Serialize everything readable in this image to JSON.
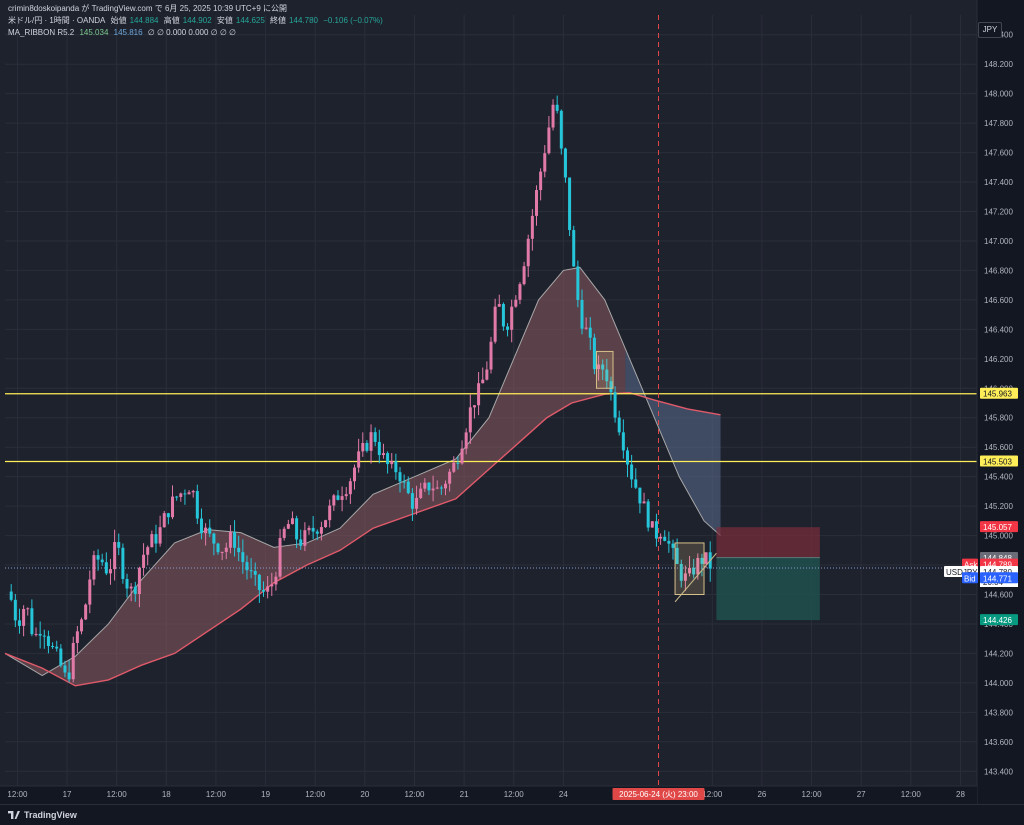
{
  "header": {
    "publish_line": "crimin8doskoipanda が TradingView.com で 6月 25, 2025 10:39 UTC+9 に公開",
    "symbol": "米ドル/円 · 1時間 · OANDA",
    "open_label": "始値",
    "open_value": "144.884",
    "high_label": "高値",
    "high_value": "144.902",
    "low_label": "安値",
    "low_value": "144.625",
    "close_label": "終値",
    "close_value": "144.780",
    "change": "−0.106 (−0.07%)",
    "indicator_name": "MA_RIBBON R5.2",
    "ma_value_1": "145.034",
    "ma_value_2": "145.816",
    "indicator_rest": "∅ ∅ 0.000 0.000 ∅ ∅ ∅"
  },
  "currency_badge": "JPY",
  "footer": {
    "brand": "TradingView"
  },
  "colors": {
    "background": "#1e222d",
    "up": "#e27aa8",
    "down": "#26c6da",
    "grid": "#2a2e39",
    "hline": "#ffee58",
    "ribbon_fill": "#8d5a60",
    "ribbon_fill_after": "#5b6b8f",
    "ma_fast": "#a7a7a7",
    "ma_slow": "#e05a6a",
    "stop_zone": "#7a2d3a",
    "target_zone": "#1f5250",
    "crosshair": "#e04848"
  },
  "chart_data": {
    "type": "candlestick",
    "symbol": "USDJPY",
    "timeframe": "1時間",
    "y_axis": {
      "min": 143.3,
      "max": 148.5,
      "ticks": [
        "148.400",
        "148.200",
        "148.000",
        "147.800",
        "147.600",
        "147.400",
        "147.200",
        "147.000",
        "146.800",
        "146.600",
        "146.400",
        "146.200",
        "146.000",
        "145.800",
        "145.600",
        "145.400",
        "145.200",
        "145.000",
        "144.800",
        "144.600",
        "144.400",
        "144.200",
        "144.000",
        "143.800",
        "143.600",
        "143.400"
      ]
    },
    "x_axis": {
      "ticks": [
        {
          "label": "12:00",
          "t": -6
        },
        {
          "label": "17",
          "t": 6
        },
        {
          "label": "12:00",
          "t": 18
        },
        {
          "label": "18",
          "t": 30
        },
        {
          "label": "12:00",
          "t": 42
        },
        {
          "label": "19",
          "t": 54
        },
        {
          "label": "12:00",
          "t": 66
        },
        {
          "label": "20",
          "t": 78
        },
        {
          "label": "12:00",
          "t": 90
        },
        {
          "label": "21",
          "t": 102
        },
        {
          "label": "12:00",
          "t": 114
        },
        {
          "label": "24",
          "t": 126
        },
        {
          "label": "12:00",
          "t": 162
        },
        {
          "label": "26",
          "t": 174
        },
        {
          "label": "12:00",
          "t": 186
        },
        {
          "label": "27",
          "t": 198
        },
        {
          "label": "12:00",
          "t": 210
        },
        {
          "label": "28",
          "t": 222
        }
      ],
      "crosshair_label": "2025-06-24 (火)  23:00",
      "crosshair_t": 149,
      "range": [
        -9,
        226
      ]
    },
    "price_path": [
      [
        -8,
        144.62
      ],
      [
        -6,
        144.4
      ],
      [
        -4,
        144.55
      ],
      [
        -2,
        144.3
      ],
      [
        0,
        144.4
      ],
      [
        2,
        144.25
      ],
      [
        4,
        144.15
      ],
      [
        6,
        144.0
      ],
      [
        8,
        144.3
      ],
      [
        10,
        144.45
      ],
      [
        12,
        144.8
      ],
      [
        14,
        144.85
      ],
      [
        16,
        144.75
      ],
      [
        18,
        144.95
      ],
      [
        20,
        144.7
      ],
      [
        22,
        144.6
      ],
      [
        24,
        144.85
      ],
      [
        26,
        144.95
      ],
      [
        28,
        145.0
      ],
      [
        30,
        145.15
      ],
      [
        32,
        145.25
      ],
      [
        34,
        145.3
      ],
      [
        36,
        145.35
      ],
      [
        38,
        145.1
      ],
      [
        40,
        145.0
      ],
      [
        42,
        144.95
      ],
      [
        44,
        144.9
      ],
      [
        46,
        145.0
      ],
      [
        48,
        144.85
      ],
      [
        50,
        144.75
      ],
      [
        52,
        144.65
      ],
      [
        54,
        144.6
      ],
      [
        56,
        144.7
      ],
      [
        58,
        145.0
      ],
      [
        60,
        145.1
      ],
      [
        62,
        144.95
      ],
      [
        64,
        145.0
      ],
      [
        66,
        145.05
      ],
      [
        68,
        145.1
      ],
      [
        70,
        145.2
      ],
      [
        72,
        145.3
      ],
      [
        74,
        145.35
      ],
      [
        76,
        145.5
      ],
      [
        78,
        145.6
      ],
      [
        80,
        145.7
      ],
      [
        82,
        145.55
      ],
      [
        84,
        145.45
      ],
      [
        86,
        145.45
      ],
      [
        88,
        145.3
      ],
      [
        90,
        145.2
      ],
      [
        92,
        145.3
      ],
      [
        94,
        145.35
      ],
      [
        96,
        145.3
      ],
      [
        98,
        145.4
      ],
      [
        100,
        145.5
      ],
      [
        102,
        145.7
      ],
      [
        104,
        145.9
      ],
      [
        106,
        146.0
      ],
      [
        108,
        146.2
      ],
      [
        110,
        146.6
      ],
      [
        112,
        146.4
      ],
      [
        114,
        146.6
      ],
      [
        116,
        146.8
      ],
      [
        118,
        147.1
      ],
      [
        120,
        147.4
      ],
      [
        122,
        147.7
      ],
      [
        124,
        148.0
      ],
      [
        125,
        147.7
      ],
      [
        126,
        147.5
      ],
      [
        127,
        147.3
      ],
      [
        128,
        146.9
      ],
      [
        130,
        146.5
      ],
      [
        132,
        146.35
      ],
      [
        134,
        146.1
      ],
      [
        136,
        146.15
      ],
      [
        138,
        145.9
      ],
      [
        140,
        145.7
      ],
      [
        142,
        145.45
      ],
      [
        144,
        145.3
      ],
      [
        146,
        145.15
      ],
      [
        148,
        145.0
      ],
      [
        150,
        145.05
      ],
      [
        152,
        144.9
      ],
      [
        154,
        144.75
      ],
      [
        156,
        144.7
      ],
      [
        158,
        144.8
      ],
      [
        160,
        144.85
      ],
      [
        162,
        144.78
      ]
    ],
    "ma_fast": [
      [
        -9,
        144.2
      ],
      [
        0,
        144.05
      ],
      [
        8,
        144.18
      ],
      [
        16,
        144.4
      ],
      [
        24,
        144.7
      ],
      [
        32,
        144.95
      ],
      [
        40,
        145.04
      ],
      [
        48,
        145.02
      ],
      [
        56,
        144.92
      ],
      [
        64,
        144.95
      ],
      [
        72,
        145.05
      ],
      [
        80,
        145.28
      ],
      [
        90,
        145.4
      ],
      [
        100,
        145.52
      ],
      [
        108,
        145.8
      ],
      [
        114,
        146.2
      ],
      [
        120,
        146.6
      ],
      [
        126,
        146.8
      ],
      [
        130,
        146.82
      ],
      [
        136,
        146.6
      ],
      [
        142,
        146.2
      ],
      [
        148,
        145.8
      ],
      [
        154,
        145.4
      ],
      [
        160,
        145.1
      ],
      [
        164,
        145.0
      ]
    ],
    "ma_slow": [
      [
        -9,
        144.2
      ],
      [
        0,
        144.1
      ],
      [
        8,
        143.98
      ],
      [
        16,
        144.02
      ],
      [
        24,
        144.12
      ],
      [
        32,
        144.2
      ],
      [
        40,
        144.35
      ],
      [
        48,
        144.5
      ],
      [
        56,
        144.68
      ],
      [
        64,
        144.8
      ],
      [
        72,
        144.9
      ],
      [
        80,
        145.05
      ],
      [
        90,
        145.15
      ],
      [
        100,
        145.25
      ],
      [
        108,
        145.45
      ],
      [
        116,
        145.65
      ],
      [
        122,
        145.8
      ],
      [
        128,
        145.9
      ],
      [
        136,
        145.96
      ],
      [
        142,
        145.97
      ],
      [
        148,
        145.92
      ],
      [
        156,
        145.86
      ],
      [
        164,
        145.82
      ]
    ],
    "horizontal_lines": [
      145.963,
      145.503
    ],
    "price_labels": [
      {
        "text": "145.963",
        "type": "level"
      },
      {
        "text": "145.503",
        "type": "level"
      },
      {
        "text": "145.057",
        "type": "stop"
      },
      {
        "text": "145.000",
        "type": "tick"
      },
      {
        "text": "144.848",
        "type": "ma"
      },
      {
        "text": "144.789",
        "type": "ask",
        "prefix": "Ask"
      },
      {
        "text": "144.780",
        "type": "last",
        "prefix": "USDJPY",
        "extra": "20:04"
      },
      {
        "text": "144.771",
        "type": "bid",
        "prefix": "Bid"
      },
      {
        "text": "144.426",
        "type": "target"
      }
    ],
    "position": {
      "t_start": 163,
      "t_end": 188,
      "entry": 144.85,
      "stop": 145.057,
      "target": 144.426
    },
    "last_price": 144.78,
    "highlight_boxes": [
      {
        "t0": 134,
        "t1": 138,
        "p_top": 146.25,
        "p_bot": 146.0
      },
      {
        "t0": 153,
        "t1": 160,
        "p_top": 144.95,
        "p_bot": 144.6
      }
    ]
  }
}
